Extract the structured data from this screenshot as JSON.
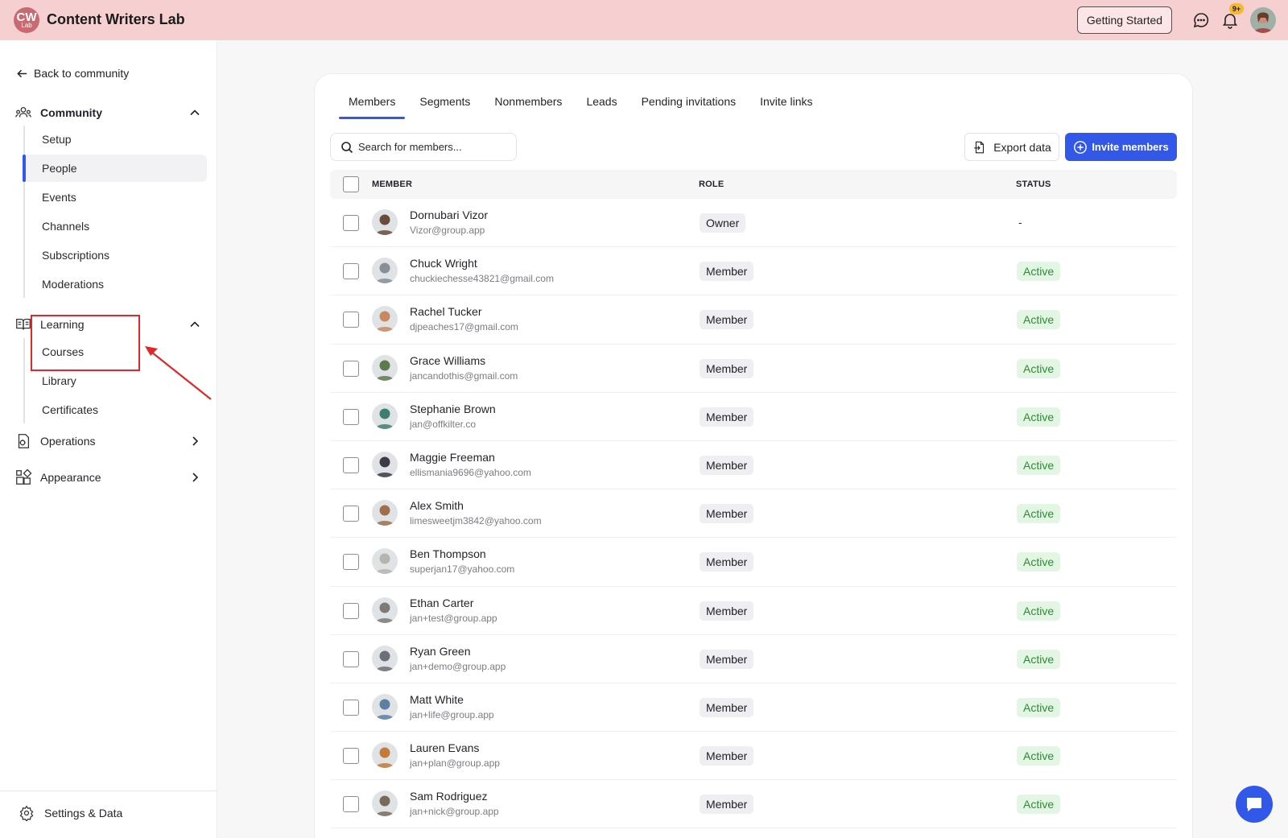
{
  "app": {
    "logo_text": "CW",
    "logo_sub": "Lab",
    "title": "Content Writers Lab"
  },
  "topbar": {
    "getting_started": "Getting Started",
    "notif_badge": "9+"
  },
  "sidebar": {
    "back": "Back to community",
    "community": {
      "label": "Community",
      "items": [
        "Setup",
        "People",
        "Events",
        "Channels",
        "Subscriptions",
        "Moderations"
      ],
      "active": "People"
    },
    "learning": {
      "label": "Learning",
      "items": [
        "Courses",
        "Library",
        "Certificates"
      ]
    },
    "operations": "Operations",
    "appearance": "Appearance",
    "settings": "Settings & Data"
  },
  "tabs": [
    "Members",
    "Segments",
    "Nonmembers",
    "Leads",
    "Pending invitations",
    "Invite links"
  ],
  "active_tab": "Members",
  "search": {
    "placeholder": "Search for members..."
  },
  "actions": {
    "export": "Export data",
    "invite": "Invite members"
  },
  "table": {
    "headers": {
      "member": "MEMBER",
      "role": "ROLE",
      "status": "STATUS"
    },
    "rows": [
      {
        "name": "Dornubari Vizor",
        "email": "Vizor@group.app",
        "role": "Owner",
        "status": "-"
      },
      {
        "name": "Chuck Wright",
        "email": "chuckiechesse43821@gmail.com",
        "role": "Member",
        "status": "Active"
      },
      {
        "name": "Rachel Tucker",
        "email": "djpeaches17@gmail.com",
        "role": "Member",
        "status": "Active"
      },
      {
        "name": "Grace Williams",
        "email": "jancandothis@gmail.com",
        "role": "Member",
        "status": "Active"
      },
      {
        "name": "Stephanie Brown",
        "email": "jan@offkilter.co",
        "role": "Member",
        "status": "Active"
      },
      {
        "name": "Maggie Freeman",
        "email": "ellismania9696@yahoo.com",
        "role": "Member",
        "status": "Active"
      },
      {
        "name": "Alex Smith",
        "email": "limesweetjm3842@yahoo.com",
        "role": "Member",
        "status": "Active"
      },
      {
        "name": "Ben Thompson",
        "email": "superjan17@yahoo.com",
        "role": "Member",
        "status": "Active"
      },
      {
        "name": "Ethan Carter",
        "email": "jan+test@group.app",
        "role": "Member",
        "status": "Active"
      },
      {
        "name": "Ryan Green",
        "email": "jan+demo@group.app",
        "role": "Member",
        "status": "Active"
      },
      {
        "name": "Matt White",
        "email": "jan+life@group.app",
        "role": "Member",
        "status": "Active"
      },
      {
        "name": "Lauren Evans",
        "email": "jan+plan@group.app",
        "role": "Member",
        "status": "Active"
      },
      {
        "name": "Sam Rodriguez",
        "email": "jan+nick@group.app",
        "role": "Member",
        "status": "Active"
      }
    ]
  },
  "colors": {
    "accent": "#3158e8",
    "topbar": "#f6cfd1",
    "active_status_bg": "#e3f6e3",
    "active_status_text": "#2f8a36",
    "annotation": "#e0282b"
  }
}
